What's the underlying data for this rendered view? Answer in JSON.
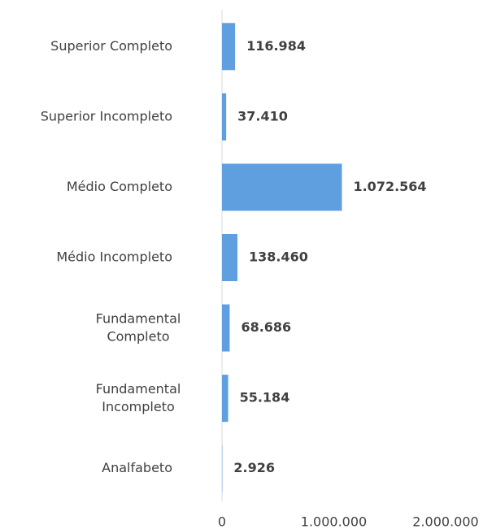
{
  "chart_data": {
    "type": "bar",
    "orientation": "horizontal",
    "categories": [
      "Superior Completo",
      "Superior Incompleto",
      "Médio Completo",
      "Médio Incompleto",
      "Fundamental Completo",
      "Fundamental Incompleto",
      "Analfabeto"
    ],
    "values": [
      116984,
      37410,
      1072564,
      138460,
      68686,
      55184,
      2926
    ],
    "value_labels": [
      "116.984",
      "37.410",
      "1.072.564",
      "138.460",
      "68.686",
      "55.184",
      "2.926"
    ],
    "color": "#5f9fe0",
    "xlim": [
      0,
      2000000
    ],
    "xticks": [
      0,
      {
        "value": 1000000,
        "label": "1.000.000"
      },
      {
        "value": 2000000,
        "label": "2.000.000"
      }
    ],
    "grid": false
  }
}
